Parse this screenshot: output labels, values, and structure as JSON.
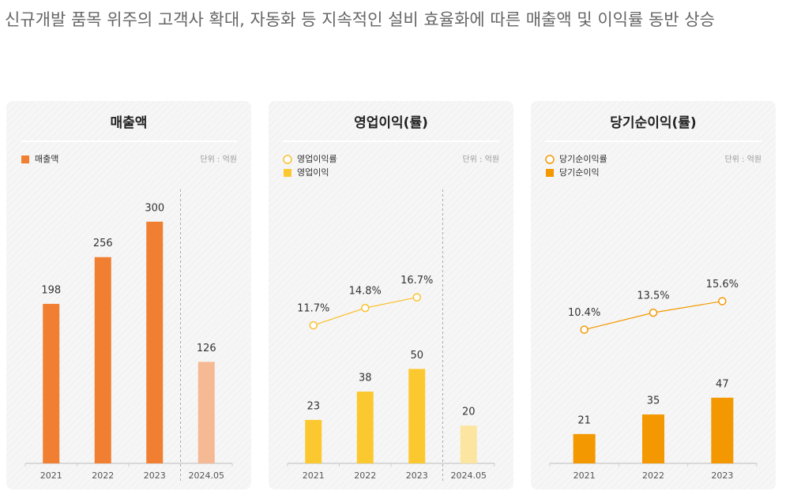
{
  "header": {
    "text": "신규개발 품목 위주의 고객사 확대, 자동화 등 지속적인 설비 효율화에 따른 매출액 및 이익률 동반 상승"
  },
  "chart_data": [
    {
      "type": "bar",
      "title": "매출액",
      "unit": "단위 : 억원",
      "categories": [
        "2021",
        "2022",
        "2023",
        "2024.05"
      ],
      "series": [
        {
          "name": "매출액",
          "type": "bar",
          "color": "#f07f32",
          "colors": [
            "#f07f32",
            "#f07f32",
            "#f07f32",
            "#f5b994"
          ],
          "values": [
            198,
            256,
            300,
            126
          ]
        }
      ],
      "ylim": [
        0,
        340
      ],
      "legend": "top-left",
      "divider_before_last": true
    },
    {
      "type": "combo",
      "title": "영업이익(률)",
      "unit": "단위 : 억원",
      "categories": [
        "2021",
        "2022",
        "2023",
        "2024.05"
      ],
      "series": [
        {
          "name": "영업이익률",
          "type": "line",
          "axis": "y2",
          "color": "#fbc02d",
          "values": [
            11.7,
            14.8,
            16.7,
            null
          ],
          "value_labels": [
            "11.7%",
            "14.8%",
            "16.7%",
            null
          ]
        },
        {
          "name": "영업이익",
          "type": "bar",
          "color": "#fbc92f",
          "colors": [
            "#fbc92f",
            "#fbc92f",
            "#fbc92f",
            "#fce5a0"
          ],
          "values": [
            23,
            38,
            50,
            20
          ]
        }
      ],
      "ylim": [
        0,
        145
      ],
      "y2lim": [
        -13,
        36
      ],
      "legend": "top-left",
      "divider_before_last": true
    },
    {
      "type": "combo",
      "title": "당기순이익(률)",
      "unit": "단위 : 억원",
      "categories": [
        "2021",
        "2022",
        "2023"
      ],
      "series": [
        {
          "name": "당기순이익률",
          "type": "line",
          "axis": "y2",
          "color": "#f39800",
          "values": [
            10.4,
            13.5,
            15.6
          ],
          "value_labels": [
            "10.4%",
            "13.5%",
            "15.6%"
          ]
        },
        {
          "name": "당기순이익",
          "type": "bar",
          "color": "#f39800",
          "values": [
            21,
            35,
            47
          ]
        }
      ],
      "ylim": [
        0,
        196
      ],
      "y2lim": [
        -14,
        36
      ],
      "legend": "top-left",
      "divider_before_last": false
    }
  ]
}
